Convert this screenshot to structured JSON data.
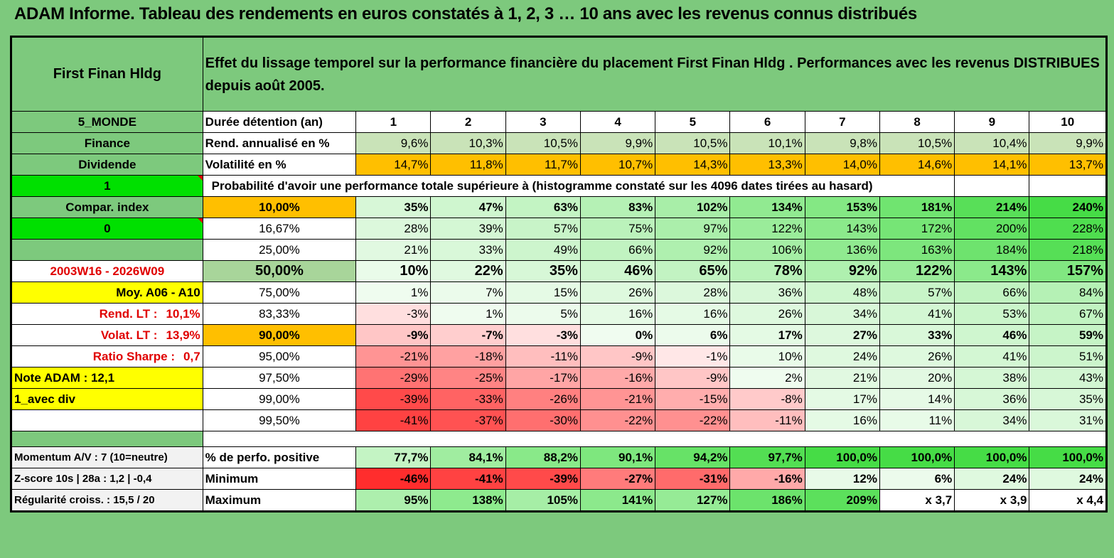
{
  "title": "ADAM Informe. Tableau des rendements en euros constatés à 1, 2, 3 … 10 ans avec les revenus connus distribués",
  "fund_name": "First Finan Hldg",
  "header_text": "Effet du lissage temporel sur la performance financière du placement First Finan Hldg . Performances avec les revenus DISTRIBUES depuis août 2005.",
  "durations_label": "Durée détention (an)",
  "durations": [
    "1",
    "2",
    "3",
    "4",
    "5",
    "6",
    "7",
    "8",
    "9",
    "10"
  ],
  "side": {
    "region": "5_MONDE",
    "sector": "Finance",
    "dividend": "Dividende",
    "one": "1",
    "compar": "Compar. index",
    "zero": "0",
    "period": "2003W16 - 2026W09",
    "moy": "Moy. A06 - A10",
    "rend_lt_label": "Rend. LT :",
    "rend_lt_value": "10,1%",
    "volat_lt_label": "Volat. LT :",
    "volat_lt_value": "13,9%",
    "sharpe_label": "Ratio Sharpe :",
    "sharpe_value": "0,7",
    "note": "Note ADAM : 12,1",
    "div": "1_avec div",
    "momentum": "Momentum A/V : 7 (10=neutre)",
    "zscore": "Z-score 10s | 28a : 1,2 | -0,4",
    "regularite": "Régularité croiss. : 15,5 / 20"
  },
  "rend": {
    "label": "Rend. annualisé en %",
    "values": [
      "9,6%",
      "10,3%",
      "10,5%",
      "9,9%",
      "10,5%",
      "10,1%",
      "9,8%",
      "10,5%",
      "10,4%",
      "9,9%"
    ]
  },
  "vol": {
    "label": "Volatilité en %",
    "values": [
      "14,7%",
      "11,8%",
      "11,7%",
      "10,7%",
      "14,3%",
      "13,3%",
      "14,0%",
      "14,6%",
      "14,1%",
      "13,7%"
    ]
  },
  "prob_header": "Probabilité d'avoir une performance totale supérieure à (histogramme constaté sur les 4096 dates tirées au hasard)",
  "prob_rows": [
    {
      "p": "10,00%",
      "values": [
        "35%",
        "47%",
        "63%",
        "83%",
        "102%",
        "134%",
        "153%",
        "181%",
        "214%",
        "240%"
      ]
    },
    {
      "p": "16,67%",
      "values": [
        "28%",
        "39%",
        "57%",
        "75%",
        "97%",
        "122%",
        "143%",
        "172%",
        "200%",
        "228%"
      ]
    },
    {
      "p": "25,00%",
      "values": [
        "21%",
        "33%",
        "49%",
        "66%",
        "92%",
        "106%",
        "136%",
        "163%",
        "184%",
        "218%"
      ]
    },
    {
      "p": "50,00%",
      "values": [
        "10%",
        "22%",
        "35%",
        "46%",
        "65%",
        "78%",
        "92%",
        "122%",
        "143%",
        "157%"
      ]
    },
    {
      "p": "75,00%",
      "values": [
        "1%",
        "7%",
        "15%",
        "26%",
        "28%",
        "36%",
        "48%",
        "57%",
        "66%",
        "84%"
      ]
    },
    {
      "p": "83,33%",
      "values": [
        "-3%",
        "1%",
        "5%",
        "16%",
        "16%",
        "26%",
        "34%",
        "41%",
        "53%",
        "67%"
      ]
    },
    {
      "p": "90,00%",
      "values": [
        "-9%",
        "-7%",
        "-3%",
        "0%",
        "6%",
        "17%",
        "27%",
        "33%",
        "46%",
        "59%"
      ]
    },
    {
      "p": "95,00%",
      "values": [
        "-21%",
        "-18%",
        "-11%",
        "-9%",
        "-1%",
        "10%",
        "24%",
        "26%",
        "41%",
        "51%"
      ]
    },
    {
      "p": "97,50%",
      "values": [
        "-29%",
        "-25%",
        "-17%",
        "-16%",
        "-9%",
        "2%",
        "21%",
        "20%",
        "38%",
        "43%"
      ]
    },
    {
      "p": "99,00%",
      "values": [
        "-39%",
        "-33%",
        "-26%",
        "-21%",
        "-15%",
        "-8%",
        "17%",
        "14%",
        "36%",
        "35%"
      ]
    },
    {
      "p": "99,50%",
      "values": [
        "-41%",
        "-37%",
        "-30%",
        "-22%",
        "-22%",
        "-11%",
        "16%",
        "11%",
        "34%",
        "31%"
      ]
    }
  ],
  "pos": {
    "label": "% de perfo. positive",
    "values": [
      "77,7%",
      "84,1%",
      "88,2%",
      "90,1%",
      "94,2%",
      "97,7%",
      "100,0%",
      "100,0%",
      "100,0%",
      "100,0%"
    ]
  },
  "min": {
    "label": "Minimum",
    "values": [
      "-46%",
      "-41%",
      "-39%",
      "-27%",
      "-31%",
      "-16%",
      "12%",
      "6%",
      "24%",
      "24%"
    ]
  },
  "max": {
    "label": "Maximum",
    "values": [
      "95%",
      "138%",
      "105%",
      "141%",
      "127%",
      "186%",
      "209%",
      "x 3,7",
      "x 3,9",
      "x 4,4"
    ]
  },
  "colors": {
    "header_green": "#7dc97d",
    "bright_green": "#00e000",
    "yellow": "#ffff00",
    "orange": "#ffbf00",
    "red_text": "#e00000"
  }
}
